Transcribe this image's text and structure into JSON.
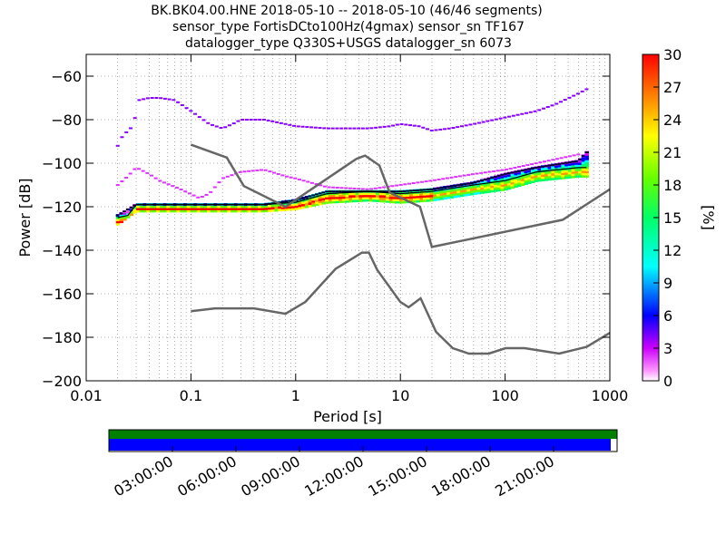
{
  "title": {
    "line1": "BK.BK04.00.HNE   2018-05-10 -- 2018-05-10  (46/46 segments)",
    "line2": "sensor_type FortisDCto100Hz(4gmax) sensor_sn TF167",
    "line3": "datalogger_type Q330S+USGS datalogger_sn 6073"
  },
  "chart_data": {
    "type": "heatmap",
    "xlabel": "Period [s]",
    "ylabel": "Power [dB]",
    "xscale": "log",
    "xlim": [
      0.01,
      1000
    ],
    "ylim": [
      -200,
      -50
    ],
    "x_tick_labels": [
      "0.01",
      "0.1",
      "1",
      "10",
      "100",
      "1000"
    ],
    "x_tick_values": [
      0.01,
      0.1,
      1,
      10,
      100,
      1000
    ],
    "y_tick_labels": [
      "−200",
      "−180",
      "−160",
      "−140",
      "−120",
      "−100",
      "−80",
      "−60"
    ],
    "y_tick_values": [
      -200,
      -180,
      -160,
      -140,
      -120,
      -100,
      -80,
      -60
    ],
    "grid": true,
    "colorbar": {
      "label": "[%]",
      "range": [
        0,
        30
      ],
      "tick_labels": [
        "0",
        "3",
        "6",
        "9",
        "12",
        "15",
        "18",
        "21",
        "24",
        "27",
        "30"
      ],
      "tick_values": [
        0,
        3,
        6,
        9,
        12,
        15,
        18,
        21,
        24,
        27,
        30
      ],
      "colormap": "pqlx"
    },
    "noise_models": {
      "color": "#666666",
      "high_noise_model": [
        [
          0.1,
          -91.5
        ],
        [
          0.22,
          -97.4
        ],
        [
          0.32,
          -110.5
        ],
        [
          0.8,
          -120
        ],
        [
          3.8,
          -98
        ],
        [
          4.6,
          -96.5
        ],
        [
          6.3,
          -101
        ],
        [
          7.9,
          -113.5
        ],
        [
          15.4,
          -120
        ],
        [
          20,
          -138.5
        ],
        [
          354.8,
          -126
        ],
        [
          1000,
          -112
        ]
      ],
      "low_noise_model": [
        [
          0.1,
          -168
        ],
        [
          0.17,
          -166.7
        ],
        [
          0.4,
          -166.7
        ],
        [
          0.8,
          -169.2
        ],
        [
          1.24,
          -163.7
        ],
        [
          2.4,
          -148.6
        ],
        [
          4.3,
          -141.1
        ],
        [
          5,
          -141.1
        ],
        [
          6,
          -149
        ],
        [
          10,
          -163.8
        ],
        [
          12,
          -166.2
        ],
        [
          15.6,
          -162.1
        ],
        [
          21.9,
          -177.5
        ],
        [
          31.6,
          -185
        ],
        [
          45,
          -187.5
        ],
        [
          70,
          -187.5
        ],
        [
          101,
          -185
        ],
        [
          154,
          -185
        ],
        [
          328,
          -187.5
        ],
        [
          600,
          -184.4
        ],
        [
          1000,
          -178
        ]
      ]
    },
    "density": {
      "modal_curve": [
        [
          0.02,
          -127
        ],
        [
          0.025,
          -126
        ],
        [
          0.03,
          -121
        ],
        [
          0.05,
          -121
        ],
        [
          0.1,
          -121
        ],
        [
          0.2,
          -121
        ],
        [
          0.5,
          -121
        ],
        [
          1,
          -120
        ],
        [
          2,
          -116
        ],
        [
          5,
          -115
        ],
        [
          10,
          -116
        ],
        [
          20,
          -115
        ],
        [
          50,
          -112
        ],
        [
          100,
          -110
        ],
        [
          200,
          -106
        ],
        [
          500,
          -104
        ],
        [
          600,
          -104
        ]
      ],
      "lower_band": [
        [
          0.02,
          -128
        ],
        [
          0.03,
          -122
        ],
        [
          0.1,
          -122
        ],
        [
          0.5,
          -122
        ],
        [
          1,
          -121
        ],
        [
          2,
          -118
        ],
        [
          5,
          -117
        ],
        [
          10,
          -118
        ],
        [
          20,
          -117
        ],
        [
          50,
          -114
        ],
        [
          100,
          -112
        ],
        [
          200,
          -108
        ],
        [
          500,
          -106
        ],
        [
          600,
          -106
        ]
      ],
      "upper_band": [
        [
          0.02,
          -124
        ],
        [
          0.03,
          -119
        ],
        [
          0.1,
          -119
        ],
        [
          0.5,
          -119
        ],
        [
          1,
          -117
        ],
        [
          2,
          -113
        ],
        [
          5,
          -113
        ],
        [
          10,
          -113
        ],
        [
          20,
          -112
        ],
        [
          50,
          -109
        ],
        [
          100,
          -105
        ],
        [
          200,
          -102
        ],
        [
          500,
          -99
        ],
        [
          600,
          -95
        ]
      ],
      "high_outliers": [
        [
          0.02,
          -92
        ],
        [
          0.022,
          -88
        ],
        [
          0.025,
          -85
        ],
        [
          0.028,
          -83
        ],
        [
          0.032,
          -71
        ],
        [
          0.04,
          -70
        ],
        [
          0.05,
          -70
        ],
        [
          0.07,
          -71
        ],
        [
          0.1,
          -76
        ],
        [
          0.15,
          -82
        ],
        [
          0.2,
          -84
        ],
        [
          0.25,
          -82
        ],
        [
          0.3,
          -80
        ],
        [
          0.5,
          -80
        ],
        [
          0.8,
          -82
        ],
        [
          1,
          -83
        ],
        [
          2,
          -84
        ],
        [
          5,
          -84
        ],
        [
          8,
          -83
        ],
        [
          10,
          -82
        ],
        [
          15,
          -83
        ],
        [
          20,
          -85
        ],
        [
          30,
          -84
        ],
        [
          50,
          -82
        ],
        [
          100,
          -79
        ],
        [
          200,
          -76
        ],
        [
          300,
          -73
        ],
        [
          500,
          -68
        ],
        [
          600,
          -66
        ]
      ],
      "mid_outliers": [
        [
          0.02,
          -110
        ],
        [
          0.025,
          -106
        ],
        [
          0.03,
          -102
        ],
        [
          0.04,
          -105
        ],
        [
          0.05,
          -108
        ],
        [
          0.08,
          -112
        ],
        [
          0.12,
          -116
        ],
        [
          0.15,
          -114
        ],
        [
          0.2,
          -107
        ],
        [
          0.3,
          -104
        ],
        [
          0.5,
          -103
        ],
        [
          0.8,
          -106
        ],
        [
          1,
          -107
        ],
        [
          2,
          -111
        ],
        [
          5,
          -112
        ],
        [
          10,
          -110
        ],
        [
          20,
          -108
        ],
        [
          50,
          -105
        ],
        [
          100,
          -103
        ],
        [
          200,
          -100
        ],
        [
          500,
          -96
        ]
      ]
    },
    "timeline": {
      "tick_labels": [
        "03:00:00",
        "06:00:00",
        "09:00:00",
        "12:00:00",
        "15:00:00",
        "18:00:00",
        "21:00:00"
      ],
      "tick_hours": [
        3,
        6,
        9,
        12,
        15,
        18,
        21
      ],
      "range_hours": [
        0,
        24
      ],
      "segments_coverage": [
        0,
        23.7
      ],
      "data_coverage": [
        0,
        24
      ],
      "segments_color": "#0000ff",
      "data_color": "#008000"
    }
  }
}
